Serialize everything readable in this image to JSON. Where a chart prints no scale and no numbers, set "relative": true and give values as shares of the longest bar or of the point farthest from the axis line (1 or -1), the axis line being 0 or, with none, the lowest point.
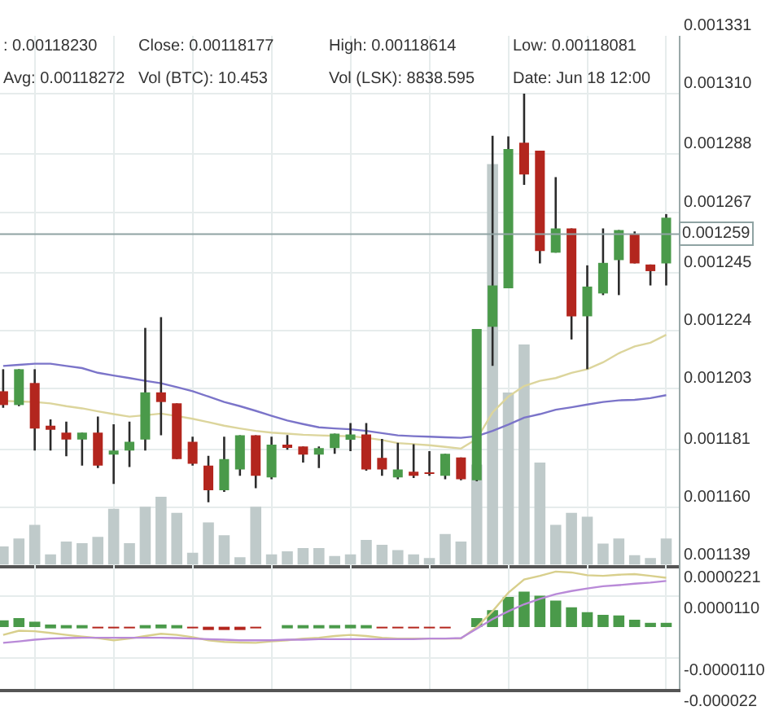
{
  "chart_data": [
    {
      "type": "candlestick",
      "categories": [
        null,
        null,
        null,
        null,
        null,
        null,
        null,
        null,
        null,
        null,
        null,
        null,
        null,
        null,
        null,
        null,
        null,
        null,
        null,
        null,
        null,
        null,
        null,
        null,
        null,
        null,
        null,
        null,
        null,
        null,
        null,
        null,
        null,
        null,
        null,
        null,
        null,
        null,
        null,
        null,
        null,
        null,
        null
      ],
      "series": [
        {
          "type": "line",
          "color": "#dcd59c",
          "values": [
            0.0011985,
            0.0011983,
            0.0011981,
            0.0011976,
            0.0011966,
            0.0011958,
            0.0011947,
            0.0011937,
            0.0011928,
            0.0011933,
            0.0011939,
            0.001193,
            0.001192,
            0.0011908,
            0.0011895,
            0.0011885,
            0.0011876,
            0.001187,
            0.0011866,
            0.0011862,
            0.001186,
            0.0011858,
            0.0011857,
            0.0011851,
            0.0011843,
            0.0011832,
            0.0011828,
            0.0011824,
            0.0011818,
            0.0011812,
            0.0011847,
            0.0011943,
            0.0012001,
            0.0012039,
            0.0012058,
            0.0012068,
            0.0012087,
            0.00121,
            0.0012125,
            0.0012158,
            0.0012183,
            0.0012196,
            0.0012225
          ]
        },
        {
          "type": "line",
          "color": "#7b74c9",
          "values": [
            0.0012112,
            0.0012116,
            0.001212,
            0.001212,
            0.0012112,
            0.0012104,
            0.0012087,
            0.0012077,
            0.0012068,
            0.0012058,
            0.0012049,
            0.0012035,
            0.001202,
            0.0012001,
            0.0011981,
            0.0011966,
            0.0011949,
            0.0011931,
            0.0011914,
            0.0011901,
            0.0011889,
            0.0011885,
            0.0011882,
            0.0011876,
            0.0011868,
            0.001186,
            0.0011857,
            0.0011855,
            0.0011853,
            0.0011851,
            0.0011857,
            0.0011876,
            0.0011899,
            0.0011924,
            0.0011937,
            0.0011953,
            0.0011962,
            0.0011972,
            0.0011981,
            0.0011987,
            0.0011989,
            0.0011995,
            0.0012006
          ]
        },
        {
          "type": "candlestick",
          "colors": [
            "#b3261e",
            "#4a9a4a",
            "#b3261e",
            "#b3261e",
            "#b3261e",
            "#4a9a4a",
            "#b3261e",
            "#4a9a4a",
            "#4a9a4a",
            "#4a9a4a",
            "#b3261e",
            "#b3261e",
            "#b3261e",
            "#b3261e",
            "#4a9a4a",
            "#4a9a4a",
            "#b3261e",
            "#4a9a4a",
            "#b3261e",
            "#b3261e",
            "#4a9a4a",
            "#4a9a4a",
            "#4a9a4a",
            "#b3261e",
            "#b3261e",
            "#4a9a4a",
            "#b3261e",
            "#b3261e",
            "#4a9a4a",
            "#b3261e",
            "#4a9a4a",
            "#4a9a4a",
            "#4a9a4a",
            "#b3261e",
            "#b3261e",
            "#4a9a4a",
            "#b3261e",
            "#4a9a4a",
            "#4a9a4a",
            "#4a9a4a",
            "#b3261e",
            "#b3261e",
            "#4a9a4a"
          ],
          "ohlc": [
            [
              0.001202,
              0.00121,
              0.001196,
              0.001197
            ],
            [
              0.001197,
              0.00121,
              0.0011966,
              0.00121
            ],
            [
              0.001205,
              0.00121,
              0.0011805,
              0.0011885
            ],
            [
              0.0011895,
              0.0011918,
              0.0011805,
              0.001188
            ],
            [
              0.001187,
              0.001191,
              0.0011784,
              0.0011845
            ],
            [
              0.0011845,
              0.001187,
              0.001175,
              0.001187
            ],
            [
              0.001187,
              0.0011928,
              0.0011741,
              0.001175
            ],
            [
              0.001179,
              0.00119,
              0.0011684,
              0.0011805
            ],
            [
              0.0011805,
              0.001191,
              0.0011745,
              0.0011837
            ],
            [
              0.0011845,
              0.001225,
              0.0011805,
              0.0012016
            ],
            [
              0.0012016,
              0.0012289,
              0.001186,
              0.0011981
            ],
            [
              0.0011976,
              0.0011976,
              0.0011774,
              0.0011774
            ],
            [
              0.0011837,
              0.0011855,
              0.001175,
              0.0011757
            ],
            [
              0.001175,
              0.0011786,
              0.0011617,
              0.0011661
            ],
            [
              0.0011661,
              0.0011855,
              0.0011655,
              0.0011774
            ],
            [
              0.0011736,
              0.001186,
              0.0011713,
              0.001186
            ],
            [
              0.001186,
              0.001186,
              0.0011668,
              0.0011713
            ],
            [
              0.0011707,
              0.0011855,
              0.0011701,
              0.0011826
            ],
            [
              0.0011823,
              0.0011861,
              0.0011808,
              0.0011818
            ],
            [
              0.001182,
              0.001182,
              0.0011761,
              0.001179
            ],
            [
              0.001179,
              0.001182,
              0.0011741,
              0.0011814
            ],
            [
              0.0011814,
              0.0011866,
              0.0011793,
              0.0011866
            ],
            [
              0.0011844,
              0.0011905,
              0.0011803,
              0.0011863
            ],
            [
              0.0011863,
              0.0011905,
              0.0011732,
              0.0011736
            ],
            [
              0.0011778,
              0.0011847,
              0.0011713,
              0.0011736
            ],
            [
              0.0011707,
              0.0011833,
              0.0011701,
              0.0011736
            ],
            [
              0.0011728,
              0.0011828,
              0.0011705,
              0.0011713
            ],
            [
              0.0011722,
              0.0011803,
              0.0011713,
              0.001172
            ],
            [
              0.0011713,
              0.0011793,
              0.0011701,
              0.0011793
            ],
            [
              0.001178,
              0.001178,
              0.0011697,
              0.0011701
            ],
            [
              0.0011697,
              0.0012246,
              0.0011693,
              0.0012246
            ],
            [
              0.0012254,
              0.0012947,
              0.0012112,
              0.0012404
            ],
            [
              0.0012394,
              0.0012945,
              0.0012394,
              0.0012899
            ],
            [
              0.0012922,
              0.00131,
              0.0012769,
              0.0012807
            ],
            [
              0.0012893,
              0.0012893,
              0.0012484,
              0.0012529
            ],
            [
              0.0012523,
              0.0012797,
              0.0012523,
              0.0012611
            ],
            [
              0.0012611,
              0.0012611,
              0.0012208,
              0.0012292
            ],
            [
              0.0012292,
              0.0012477,
              0.00121,
              0.00124
            ],
            [
              0.0012375,
              0.0012611,
              0.0012369,
              0.0012486
            ],
            [
              0.0012496,
              0.0012605,
              0.0012369,
              0.0012605
            ],
            [
              0.0012592,
              0.00126,
              0.0012484,
              0.0012484
            ],
            [
              0.001248,
              0.001248,
              0.0012404,
              0.0012456
            ],
            [
              0.0012484,
              0.0012663,
              0.0012404,
              0.001265
            ]
          ]
        }
      ],
      "ylim": [
        0.001139,
        0.001331
      ],
      "yticks": [
        0.001139,
        {
          "value": 0.00116,
          "label": "0.001160"
        },
        0.001181,
        0.001203,
        0.001224,
        0.001245,
        0.001267,
        0.001288,
        {
          "value": 0.00131,
          "label": "0.001310"
        },
        0.001331
      ],
      "grid": true,
      "tick_labels": "y",
      "ref_lines": [
        {
          "axis": "y",
          "value": 0.001259,
          "label": "0.001259",
          "color": "#8fa3a3"
        }
      ],
      "annotations": [
        ": 0.00118230",
        "Close: 0.00118177",
        "High: 0.00118614",
        "Low: 0.00118081",
        "Avg: 0.00118272",
        "Vol (BTC): 10.453",
        "Vol (LSK): 8838.595",
        "Date: Jun 18 12:00"
      ]
    },
    {
      "type": "bar",
      "relative": true,
      "color": "#bfcaca",
      "categories": [
        null,
        null,
        null,
        null,
        null,
        null,
        null,
        null,
        null,
        null,
        null,
        null,
        null,
        null,
        null,
        null,
        null,
        null,
        null,
        null,
        null,
        null,
        null,
        null,
        null,
        null,
        null,
        null,
        null,
        null,
        null,
        null,
        null,
        null,
        null,
        null,
        null,
        null,
        null,
        null,
        null,
        null,
        null
      ],
      "values": [
        0.046,
        0.066,
        0.1,
        0.026,
        0.058,
        0.054,
        0.07,
        0.14,
        0.054,
        0.145,
        0.17,
        0.13,
        0.03,
        0.106,
        0.074,
        0.019,
        0.145,
        0.026,
        0.034,
        0.042,
        0.042,
        0.022,
        0.026,
        0.062,
        0.05,
        0.037,
        0.026,
        0.017,
        0.077,
        0.058,
        0.25,
        1,
        0.43,
        0.55,
        0.255,
        0.1,
        0.13,
        0.12,
        0.053,
        0.066,
        0.024,
        0.017,
        0.066
      ]
    },
    {
      "type": "bar",
      "categories": [
        null,
        null,
        null,
        null,
        null,
        null,
        null,
        null,
        null,
        null,
        null,
        null,
        null,
        null,
        null,
        null,
        null,
        null,
        null,
        null,
        null,
        null,
        null,
        null,
        null,
        null,
        null,
        null,
        null,
        null,
        null,
        null,
        null,
        null,
        null,
        null,
        null,
        null,
        null,
        null,
        null,
        null,
        null
      ],
      "series": [
        {
          "type": "bar",
          "colors": [
            "#4a9a4a",
            "#4a9a4a",
            "#4a9a4a",
            "#4a9a4a",
            "#4a9a4a",
            "#4a9a4a",
            "#b3261e",
            "#b3261e",
            "#b3261e",
            "#4a9a4a",
            "#4a9a4a",
            "#4a9a4a",
            "#b3261e",
            "#b3261e",
            "#b3261e",
            "#b3261e",
            "#b3261e",
            "#4a9a4a",
            "#4a9a4a",
            "#4a9a4a",
            "#4a9a4a",
            "#4a9a4a",
            "#4a9a4a",
            "#4a9a4a",
            "#b3261e",
            "#b3261e",
            "#b3261e",
            "#b3261e",
            "#b3261e",
            "#4a9a4a",
            "#4a9a4a",
            "#4a9a4a",
            "#4a9a4a",
            "#4a9a4a",
            "#4a9a4a",
            "#4a9a4a",
            "#4a9a4a",
            "#4a9a4a",
            "#4a9a4a",
            "#4a9a4a",
            "#4a9a4a",
            "#4a9a4a",
            "#4a9a4a"
          ],
          "values": [
            2.4e-06,
            3.2e-06,
            1.9e-06,
            9e-07,
            4e-07,
            4e-07,
            -2e-07,
            -4e-07,
            -4e-07,
            4e-07,
            9e-07,
            4e-07,
            -4e-07,
            -9e-07,
            -9e-07,
            -6e-07,
            -4e-07,
            0,
            2e-07,
            2e-07,
            4e-07,
            6e-07,
            8e-07,
            2e-07,
            -4e-07,
            -4e-07,
            -4e-07,
            -4e-07,
            -2e-07,
            0,
            3.2e-06,
            6e-06,
            1.07e-05,
            1.26e-05,
            1.11e-05,
            9.4e-06,
            7e-06,
            5.3e-06,
            4.3e-06,
            4.1e-06,
            2.6e-06,
            1.5e-06,
            1.5e-06
          ]
        },
        {
          "type": "line",
          "color": "#d8cf8c",
          "values": [
            -2.8e-06,
            -1.3e-06,
            -1.5e-06,
            -2.1e-06,
            -2.8e-06,
            -3.4e-06,
            -3.9e-06,
            -4.7e-06,
            -4.1e-06,
            -3.2e-06,
            -2.4e-06,
            -2.8e-06,
            -3.6e-06,
            -4.7e-06,
            -5.3e-06,
            -5.5e-06,
            -5.6e-06,
            -5.1e-06,
            -4.7e-06,
            -4.1e-06,
            -3.8e-06,
            -3.2e-06,
            -2.8e-06,
            -3.2e-06,
            -3.8e-06,
            -4.1e-06,
            -4.1e-06,
            -4.1e-06,
            -4.1e-06,
            -4.1e-06,
            0,
            5.6e-06,
            1.22e-05,
            1.69e-05,
            1.82e-05,
            1.97e-05,
            1.94e-05,
            1.84e-05,
            1.82e-05,
            1.86e-05,
            1.88e-05,
            1.82e-05,
            1.75e-05
          ]
        },
        {
          "type": "line",
          "color": "#b98ad8",
          "values": [
            -5.6e-06,
            -5.1e-06,
            -4.5e-06,
            -4.1e-06,
            -3.9e-06,
            -3.8e-06,
            -3.8e-06,
            -3.8e-06,
            -3.8e-06,
            -3.8e-06,
            -3.8e-06,
            -3.9e-06,
            -4.1e-06,
            -4.3e-06,
            -4.5e-06,
            -4.7e-06,
            -4.7e-06,
            -4.7e-06,
            -4.5e-06,
            -4.5e-06,
            -4.3e-06,
            -4.3e-06,
            -4.3e-06,
            -4.3e-06,
            -4.3e-06,
            -4.3e-06,
            -4.3e-06,
            -4.1e-06,
            -4.1e-06,
            -3.9e-06,
            -6e-07,
            2.8e-06,
            5.6e-06,
            8.1e-06,
            1e-05,
            1.17e-05,
            1.28e-05,
            1.37e-05,
            1.45e-05,
            1.49e-05,
            1.54e-05,
            1.58e-05,
            1.64e-05
          ]
        }
      ],
      "ylim": [
        -2.2e-05,
        2.21e-05
      ],
      "yticks": [
        {
          "value": 2.21e-05,
          "label": "0.0000221"
        },
        {
          "value": 1.1e-05,
          "label": "0.0000110"
        },
        {
          "value": -1.1e-05,
          "label": "-0.0000110"
        },
        {
          "value": -2.2e-05,
          "label": "-0.000022"
        }
      ],
      "grid": true,
      "tick_labels": "y"
    }
  ]
}
